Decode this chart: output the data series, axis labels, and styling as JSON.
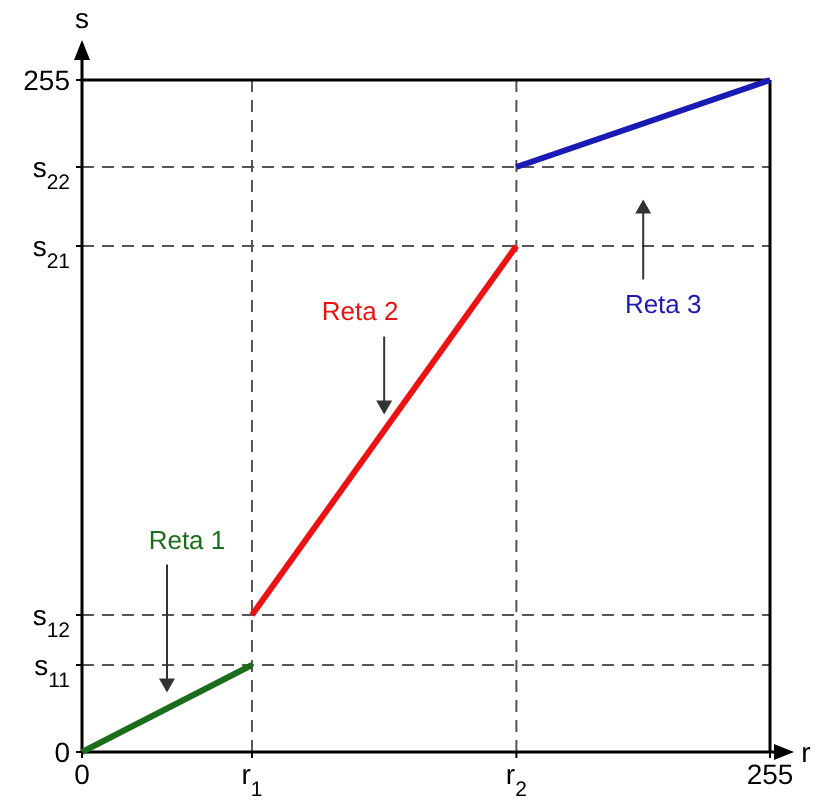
{
  "chart_data": {
    "type": "line",
    "xlabel": "r",
    "ylabel": "s",
    "xlim": [
      0,
      255
    ],
    "ylim": [
      0,
      255
    ],
    "xticks": [
      0,
      {
        "value": 63,
        "label": null
      },
      {
        "value": 161,
        "label": null
      },
      255
    ],
    "yticks": [
      0,
      {
        "value": 33,
        "label": null
      },
      {
        "value": 52,
        "label": null
      },
      {
        "value": 192,
        "label": null
      },
      {
        "value": 222,
        "label": null
      },
      255
    ],
    "grid": false,
    "legend": false,
    "line_style": "solid",
    "marker": "none",
    "ref_lines": [
      {
        "axis": "x",
        "value": 63,
        "label": "r$_{1}$",
        "color": "#555555",
        "line_style": "dashed"
      },
      {
        "axis": "x",
        "value": 161,
        "label": "r$_{2}$",
        "color": "#555555",
        "line_style": "dashed"
      },
      {
        "axis": "y",
        "value": 33,
        "label": "s$_{11}$",
        "color": "#555555",
        "line_style": "dashed"
      },
      {
        "axis": "y",
        "value": 52,
        "label": "s$_{12}$",
        "color": "#555555",
        "line_style": "dashed"
      },
      {
        "axis": "y",
        "value": 192,
        "label": "s$_{21}$",
        "color": "#555555",
        "line_style": "dashed"
      },
      {
        "axis": "y",
        "value": 222,
        "label": "s$_{22}$",
        "color": "#555555",
        "line_style": "dashed"
      }
    ],
    "series": [
      {
        "name": "Reta 1",
        "color": "#1a6e1a",
        "x": [
          0,
          63
        ],
        "values": [
          0,
          33
        ]
      },
      {
        "name": "Reta 2",
        "color": "#ee1111",
        "x": [
          63,
          161
        ],
        "values": [
          52,
          192
        ]
      },
      {
        "name": "Reta 3",
        "color": "#1a1ab4",
        "x": [
          161,
          255
        ],
        "values": [
          222,
          255
        ]
      }
    ]
  }
}
